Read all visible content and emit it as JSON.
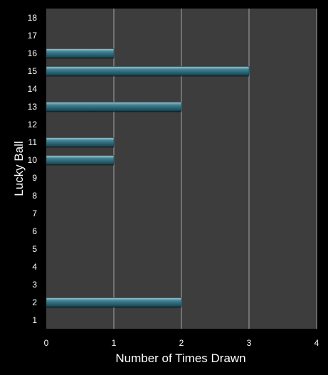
{
  "chart_data": {
    "type": "bar",
    "orientation": "horizontal",
    "categories": [
      "1",
      "2",
      "3",
      "4",
      "5",
      "6",
      "7",
      "8",
      "9",
      "10",
      "11",
      "12",
      "13",
      "14",
      "15",
      "16",
      "17",
      "18"
    ],
    "values": [
      0,
      2,
      0,
      0,
      0,
      0,
      0,
      0,
      0,
      1,
      1,
      0,
      2,
      0,
      3,
      1,
      0,
      0
    ],
    "xlabel": "Number of Times Drawn",
    "ylabel": "Lucky Ball",
    "xlim": [
      0,
      4
    ],
    "xticks": [
      "0",
      "1",
      "2",
      "3",
      "4"
    ],
    "grid": "vertical",
    "legend": "none",
    "colors": {
      "background": "#000000",
      "plot_area": "#3d3d3d",
      "bar_fill": "#3f8192",
      "bar_highlight": "#9ac9d6",
      "bar_shadow": "#1d4653",
      "gridline": "#a8a8a8",
      "text": "#ffffff"
    }
  }
}
